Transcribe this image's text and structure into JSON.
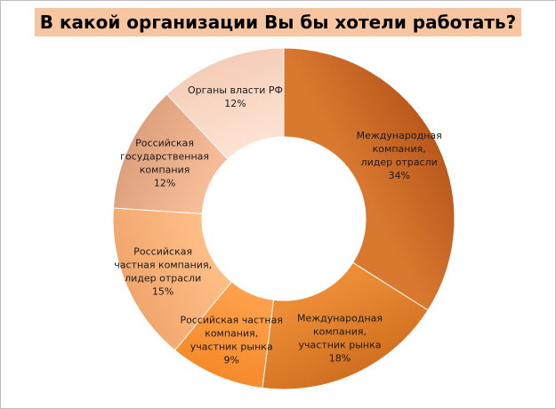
{
  "chart_data": {
    "type": "pie",
    "variant": "donut",
    "title": "В какой организации Вы бы хотели работать?",
    "unit": "%",
    "slices": [
      {
        "label": [
          "Международная",
          "компания,",
          "лидер отрасли"
        ],
        "value": 34,
        "display": "34%",
        "color": "#b9581c",
        "color_light": "#d9792f"
      },
      {
        "label": [
          "Международная",
          "компания,",
          "участник рынка"
        ],
        "value": 18,
        "display": "18%",
        "color": "#d1701f",
        "color_light": "#ec8d36"
      },
      {
        "label": [
          "Российская частная",
          "компания,",
          "участник рынка"
        ],
        "value": 9,
        "display": "9%",
        "color": "#f58a2a",
        "color_light": "#ffa14c"
      },
      {
        "label": [
          "Российская",
          "частная компания,",
          "лидер отрасли"
        ],
        "value": 15,
        "display": "15%",
        "color": "#f0a66c",
        "color_light": "#ffbd86"
      },
      {
        "label": [
          "Российская",
          "государственная",
          "компания"
        ],
        "value": 12,
        "display": "12%",
        "color": "#dda07d",
        "color_light": "#f7bd99"
      },
      {
        "label": [
          "Органы власти РФ"
        ],
        "value": 12,
        "display": "12%",
        "color": "#f4cdb6",
        "color_light": "#fde2d2"
      }
    ]
  }
}
